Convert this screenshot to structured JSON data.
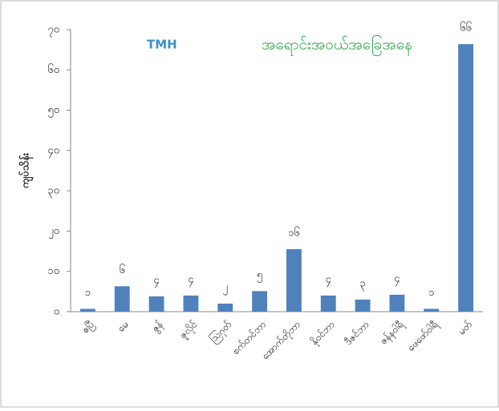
{
  "chart_data": {
    "type": "bar",
    "title": "အရောင်းအဝယ်အခြေအနေ",
    "logo": "TMH",
    "y_label": "ကျပ်သိန်း",
    "categories": [
      "ဧပြီ",
      "မေ",
      "ဇွန်",
      "ဇူလိုင်",
      "ဩဂုတ်",
      "စက်တင်ဘာ",
      "အောက်တိုဘာ",
      "နိုဝင်ဘာ",
      "ဒီဇင်ဘာ",
      "ဇန်နဝါရီ",
      "ဖေဖော်ဝါရီ",
      "မတ်"
    ],
    "values": [
      0.7,
      6.3,
      3.8,
      4,
      2,
      5.1,
      15.5,
      4,
      3,
      4.2,
      0.7,
      66.4
    ],
    "value_labels": [
      "၁",
      "၆",
      "၄",
      "၄",
      "၂",
      "၅",
      "၁၆",
      "၄",
      "၃",
      "၄",
      "၁",
      "၆၆"
    ],
    "color": "#4f81bd",
    "ylim": [
      0,
      70
    ],
    "yticks": [
      {
        "value": 0,
        "label": "၀"
      },
      {
        "value": 10,
        "label": "၁၀"
      },
      {
        "value": 20,
        "label": "၂၀"
      },
      {
        "value": 30,
        "label": "၃၀"
      },
      {
        "value": 40,
        "label": "၄၀"
      },
      {
        "value": 50,
        "label": "၅၀"
      },
      {
        "value": 60,
        "label": "၆၀"
      },
      {
        "value": 70,
        "label": "၇၀"
      }
    ]
  }
}
